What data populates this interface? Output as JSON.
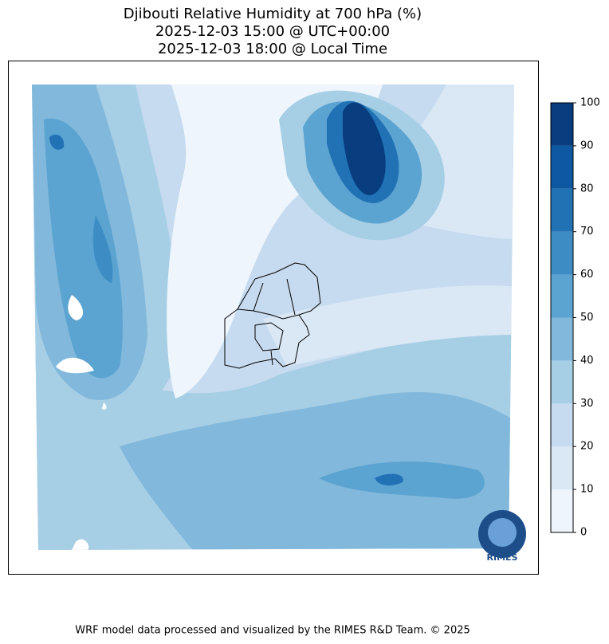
{
  "title": {
    "lines": [
      "Djibouti Relative Humidity at 700 hPa (%)",
      "2025-12-03 15:00 @ UTC+00:00",
      "2025-12-03 18:00 @ Local Time"
    ]
  },
  "map": {
    "logo_text": "RIMES"
  },
  "colorbar": {
    "lim": [
      0,
      100
    ],
    "ticks": [
      0,
      10,
      20,
      30,
      40,
      50,
      60,
      70,
      80,
      90,
      100
    ],
    "colors": [
      "#eef5fc",
      "#dae8f6",
      "#c6dbef",
      "#a6cee4",
      "#81b8dc",
      "#5ba3d0",
      "#3d8dc4",
      "#2171b5",
      "#0e58a2",
      "#083d7f"
    ]
  },
  "footer": "WRF model data processed and visualized by the RIMES R&D Team. © 2025"
}
